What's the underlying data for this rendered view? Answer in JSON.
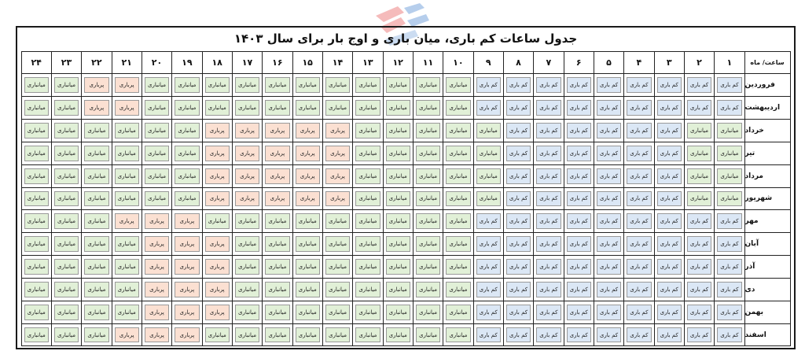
{
  "title": "جدول ساعات کم باری، میان باری و اوج بار برای سال ۱۴۰۳",
  "corner_label": "ساعت/ ماه",
  "hours": [
    "۱",
    "۲",
    "۳",
    "۴",
    "۵",
    "۶",
    "۷",
    "۸",
    "۹",
    "۱۰",
    "۱۱",
    "۱۲",
    "۱۳",
    "۱۴",
    "۱۵",
    "۱۶",
    "۱۷",
    "۱۸",
    "۱۹",
    "۲۰",
    "۲۱",
    "۲۲",
    "۲۳",
    "۲۴"
  ],
  "labels": {
    "L": "کم باری",
    "M": "میانباری",
    "P": "پرباری"
  },
  "colors": {
    "L": "#dbe7f5",
    "M": "#e1f0d7",
    "P": "#fbe0d2"
  },
  "rows": [
    {
      "month": "فروردین",
      "slots": "LLLLLLLLLMMMMMMMMMMMPPMM"
    },
    {
      "month": "اردیبهشت",
      "slots": "LLLLLLLLLMMMMMMMMMMMPPMM"
    },
    {
      "month": "خرداد",
      "slots": "MMLLLLLLMMMMMPPPPPMMMMMM"
    },
    {
      "month": "تیر",
      "slots": "MMLLLLLLMMMMMPPPPPMMMMMM"
    },
    {
      "month": "مرداد",
      "slots": "MMLLLLLLMMMMMPPPPPMMMMMM"
    },
    {
      "month": "شهریور",
      "slots": "MMLLLLLLMMMMMPPPPPMMMMMM"
    },
    {
      "month": "مهر",
      "slots": "LLLLLLLLLMMMMMMMMMPPPMMM"
    },
    {
      "month": "آبان",
      "slots": "LLLLLLLLLMMMMMMMMPPPMMMM"
    },
    {
      "month": "آذر",
      "slots": "LLLLLLLLLMMMMMMMMPPPMMMM"
    },
    {
      "month": "دی",
      "slots": "LLLLLLLLLMMMMMMMMPPPMMMM"
    },
    {
      "month": "بهمن",
      "slots": "LLLLLLLLLMMMMMMMMPPPMMMM"
    },
    {
      "month": "اسفند",
      "slots": "LLLLLLLLLMMMMMMMMMPPPMMM"
    }
  ]
}
